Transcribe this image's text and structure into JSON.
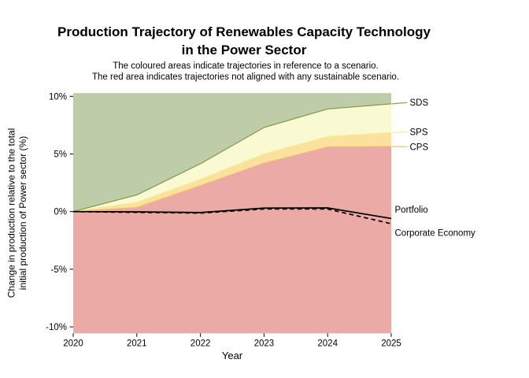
{
  "title": {
    "line1": "Production Trajectory of Renewables Capacity Technology",
    "line2": "in the Power Sector"
  },
  "subtitle": {
    "line1": "The coloured areas indicate trajectories in reference to a scenario.",
    "line2": "The red area indicates trajectories not aligned with any sustainable scenario."
  },
  "chart_data": {
    "type": "area",
    "x": [
      2020,
      2021,
      2022,
      2023,
      2024,
      2025
    ],
    "xlabel": "Year",
    "ylabel_lines": [
      "Change in production relative to the total",
      "initial production of Power sector (%)"
    ],
    "xlim": [
      2020,
      2025
    ],
    "ylim": [
      -10.57,
      10.28
    ],
    "xticks": {
      "values": [
        2020,
        2021,
        2022,
        2023,
        2024,
        2025
      ],
      "labels": [
        "2020",
        "2021",
        "2022",
        "2023",
        "2024",
        "2025"
      ]
    },
    "yticks": {
      "values": [
        -10,
        -5,
        0,
        5,
        10
      ],
      "labels": [
        "-10%",
        "-5%",
        "0%",
        "5%",
        "10%"
      ]
    },
    "grid": false,
    "legend_position": "right-margin",
    "scenario_boundaries": [
      {
        "label": "SDS",
        "values": [
          0,
          1.45,
          4.15,
          7.3,
          8.9,
          9.35
        ],
        "line_color": "#879c55",
        "area_above_color": "#bfccaa"
      },
      {
        "label": "SPS",
        "values": [
          0,
          0.8,
          2.8,
          5.0,
          6.5,
          6.85
        ],
        "line_color": "#ededa6",
        "area_above_color": "#fafad2"
      },
      {
        "label": "CPS",
        "values": [
          0,
          0.35,
          2.25,
          4.2,
          5.6,
          5.65
        ],
        "line_color": "#e9c169",
        "area_above_color": "#fce19e"
      }
    ],
    "not_aligned_area_color": "#ebaaa5",
    "series": [
      {
        "label": "Portfolio",
        "values": [
          0,
          -0.02,
          -0.08,
          0.3,
          0.32,
          -0.6
        ],
        "color": "#000000",
        "style": "solid"
      },
      {
        "label": "Corporate Economy",
        "values": [
          0,
          -0.07,
          -0.13,
          0.22,
          0.22,
          -1.05
        ],
        "color": "#000000",
        "style": "dashed"
      }
    ]
  }
}
